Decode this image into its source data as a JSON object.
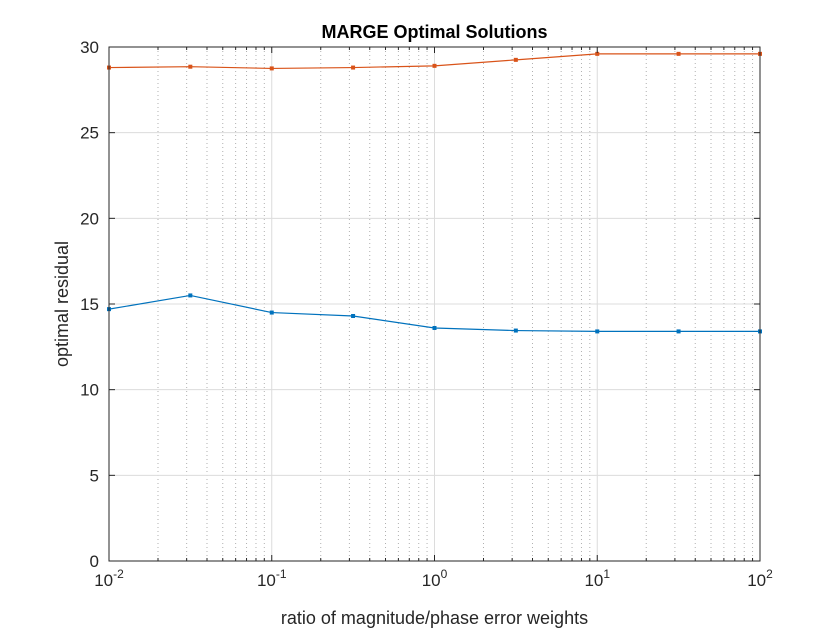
{
  "chart_data": {
    "type": "line",
    "title": "MARGE Optimal Solutions",
    "xlabel": "ratio of magnitude/phase error weights",
    "ylabel": "optimal residual",
    "xscale": "log",
    "xlim": [
      0.01,
      100
    ],
    "ylim": [
      0,
      30
    ],
    "grid": true,
    "x_ticks": [
      {
        "base": "10",
        "exp": "-2",
        "value": 0.01
      },
      {
        "base": "10",
        "exp": "-1",
        "value": 0.1
      },
      {
        "base": "10",
        "exp": "0",
        "value": 1
      },
      {
        "base": "10",
        "exp": "1",
        "value": 10
      },
      {
        "base": "10",
        "exp": "2",
        "value": 100
      }
    ],
    "y_ticks": [
      0,
      5,
      10,
      15,
      20,
      25,
      30
    ],
    "x": [
      0.01,
      0.0316,
      0.1,
      0.316,
      1,
      3.16,
      10,
      31.6,
      100
    ],
    "series": [
      {
        "color": "#0072BD",
        "values": [
          14.7,
          15.5,
          14.5,
          14.3,
          13.6,
          13.45,
          13.4,
          13.4,
          13.4
        ]
      },
      {
        "color": "#D95319",
        "values": [
          28.8,
          28.85,
          28.75,
          28.8,
          28.9,
          29.25,
          29.6,
          29.6,
          29.6
        ]
      }
    ]
  }
}
